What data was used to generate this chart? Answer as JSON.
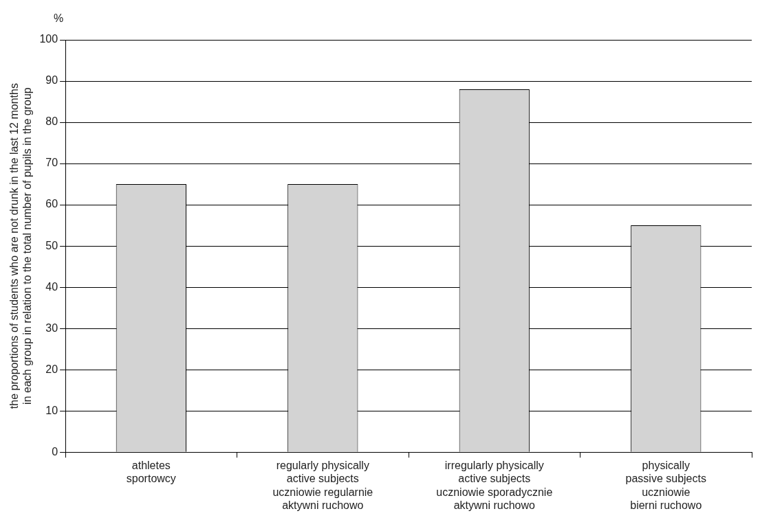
{
  "chart_data": {
    "type": "bar",
    "ylabel": "the proportions of students who are not drunk in the last 12 months\nin each group in relation to the total number of pupils in the group",
    "annotations": [
      "%"
    ],
    "categories": [
      "athletes\nsportowcy",
      "regularly physically\nactive subjects\nuczniowie regularnie\naktywni ruchowo",
      "irregularly physically\nactive subjects\nuczniowie sporadycznie\naktywni ruchowo",
      "physically\npassive subjects\nuczniowie\nbierni ruchowo"
    ],
    "values": [
      65,
      65,
      88,
      55
    ],
    "color": "#d3d3d3",
    "ylim": [
      0,
      100
    ],
    "yticks": [
      0,
      10,
      20,
      30,
      40,
      50,
      60,
      70,
      80,
      90,
      100
    ],
    "grid": "y",
    "legend": false
  }
}
